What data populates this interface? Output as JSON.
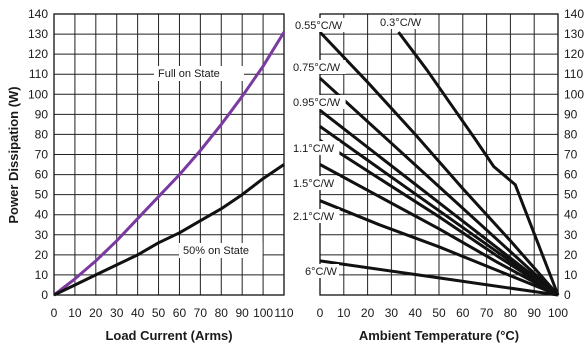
{
  "chart_data": [
    {
      "type": "line",
      "ylabel": "Power Dissipation (W)",
      "xlabel": "Load Current (Arms)",
      "xlim": [
        0,
        110
      ],
      "ylim": [
        0,
        140
      ],
      "x_ticks": [
        "0",
        "10",
        "20",
        "30",
        "40",
        "50",
        "60",
        "70",
        "80",
        "90",
        "100",
        "110"
      ],
      "y_ticks": [
        "0",
        "10",
        "20",
        "30",
        "40",
        "50",
        "60",
        "70",
        "80",
        "90",
        "100",
        "110",
        "120",
        "130",
        "140"
      ],
      "grid": true,
      "colors": {
        "full": "#7a3aa0",
        "half": "#111111"
      },
      "series": [
        {
          "name": "Full on State",
          "x": [
            0,
            10,
            20,
            30,
            40,
            50,
            60,
            70,
            80,
            90,
            100,
            110
          ],
          "y": [
            0,
            8,
            17,
            27,
            38,
            49,
            60,
            72,
            85,
            99,
            114,
            131
          ]
        },
        {
          "name": "50% on State",
          "x": [
            0,
            10,
            20,
            30,
            40,
            50,
            60,
            70,
            80,
            90,
            100,
            110
          ],
          "y": [
            0,
            5,
            10,
            15,
            20,
            26,
            31,
            37,
            43,
            50,
            58,
            65
          ]
        }
      ]
    },
    {
      "type": "line",
      "xlabel": "Ambient Temperature (°C)",
      "xlim": [
        0,
        100
      ],
      "ylim": [
        0,
        140
      ],
      "x_ticks": [
        "0",
        "10",
        "20",
        "30",
        "40",
        "50",
        "60",
        "70",
        "80",
        "90",
        "100"
      ],
      "y_ticks": [
        "0",
        "10",
        "20",
        "30",
        "40",
        "50",
        "60",
        "70",
        "80",
        "90",
        "100",
        "110",
        "120",
        "130",
        "140"
      ],
      "grid": true,
      "color": "#111111",
      "series": [
        {
          "name": "0.3°C/W",
          "x": [
            33,
            45,
            55,
            65,
            73,
            82,
            100
          ],
          "y": [
            131,
            112,
            95,
            78,
            64,
            55,
            0
          ]
        },
        {
          "name": "0.55°C/W",
          "x": [
            0,
            20,
            40,
            60,
            80,
            100
          ],
          "y": [
            131,
            106,
            80,
            53,
            27,
            0
          ]
        },
        {
          "name": "0.75°C/W",
          "x": [
            0,
            25,
            50,
            75,
            100
          ],
          "y": [
            108,
            81,
            54,
            27,
            0
          ]
        },
        {
          "name": "0.95°C/W",
          "x": [
            0,
            25,
            50,
            75,
            100
          ],
          "y": [
            92,
            69,
            46,
            23,
            0
          ]
        },
        {
          "name": "",
          "x": [
            0,
            25,
            50,
            75,
            100
          ],
          "y": [
            84,
            63,
            42,
            21,
            0
          ]
        },
        {
          "name": "1.1°C/W",
          "x": [
            0,
            25,
            50,
            75,
            100
          ],
          "y": [
            77,
            58,
            39,
            19,
            0
          ]
        },
        {
          "name": "1.5°C/W",
          "x": [
            0,
            25,
            50,
            75,
            100
          ],
          "y": [
            65,
            49,
            33,
            16,
            0
          ]
        },
        {
          "name": "2.1°C/W",
          "x": [
            0,
            25,
            50,
            75,
            100
          ],
          "y": [
            47,
            35,
            24,
            12,
            0
          ]
        },
        {
          "name": "6°C/W",
          "x": [
            0,
            50,
            100
          ],
          "y": [
            17,
            8.5,
            0
          ]
        }
      ]
    }
  ]
}
